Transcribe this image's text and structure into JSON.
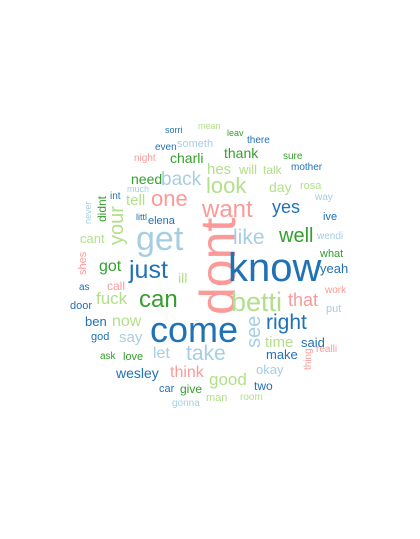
{
  "palette": {
    "dark_blue": "#2171b5",
    "light_blue": "#a6cee3",
    "dark_green": "#33a02c",
    "light_green": "#b2df8a",
    "pink": "#fb9a99"
  },
  "words": [
    {
      "text": "dont",
      "color": "pink",
      "rotated": true
    },
    {
      "text": "know",
      "color": "dark_blue",
      "rotated": false
    },
    {
      "text": "come",
      "color": "dark_blue",
      "rotated": false
    },
    {
      "text": "get",
      "color": "light_blue",
      "rotated": false
    },
    {
      "text": "betti",
      "color": "light_green",
      "rotated": false
    },
    {
      "text": "want",
      "color": "pink",
      "rotated": false
    },
    {
      "text": "just",
      "color": "dark_blue",
      "rotated": false
    },
    {
      "text": "can",
      "color": "dark_green",
      "rotated": false
    },
    {
      "text": "one",
      "color": "pink",
      "rotated": false
    },
    {
      "text": "look",
      "color": "light_green",
      "rotated": false
    },
    {
      "text": "see",
      "color": "light_blue",
      "rotated": true
    },
    {
      "text": "your",
      "color": "light_green",
      "rotated": true
    },
    {
      "text": "right",
      "color": "dark_blue",
      "rotated": false
    },
    {
      "text": "like",
      "color": "light_blue",
      "rotated": false
    },
    {
      "text": "take",
      "color": "light_blue",
      "rotated": false
    },
    {
      "text": "well",
      "color": "dark_green",
      "rotated": false
    },
    {
      "text": "yes",
      "color": "dark_blue",
      "rotated": false
    },
    {
      "text": "back",
      "color": "light_blue",
      "rotated": false
    },
    {
      "text": "that",
      "color": "pink",
      "rotated": false
    },
    {
      "text": "good",
      "color": "light_green",
      "rotated": false
    },
    {
      "text": "think",
      "color": "pink",
      "rotated": false
    },
    {
      "text": "got",
      "color": "dark_green",
      "rotated": false
    },
    {
      "text": "fuck",
      "color": "light_green",
      "rotated": false
    },
    {
      "text": "now",
      "color": "light_green",
      "rotated": false
    },
    {
      "text": "hes",
      "color": "light_green",
      "rotated": false
    },
    {
      "text": "let",
      "color": "light_blue",
      "rotated": false
    },
    {
      "text": "say",
      "color": "light_blue",
      "rotated": false
    },
    {
      "text": "tell",
      "color": "light_green",
      "rotated": false
    },
    {
      "text": "time",
      "color": "light_green",
      "rotated": false
    },
    {
      "text": "wesley",
      "color": "dark_blue",
      "rotated": false
    },
    {
      "text": "charli",
      "color": "dark_green",
      "rotated": false
    },
    {
      "text": "thank",
      "color": "dark_green",
      "rotated": false
    },
    {
      "text": "need",
      "color": "dark_green",
      "rotated": false
    },
    {
      "text": "day",
      "color": "light_green",
      "rotated": false
    },
    {
      "text": "will",
      "color": "light_green",
      "rotated": false
    },
    {
      "text": "ill",
      "color": "light_green",
      "rotated": false
    },
    {
      "text": "yeah",
      "color": "dark_blue",
      "rotated": false
    },
    {
      "text": "make",
      "color": "dark_blue",
      "rotated": false
    },
    {
      "text": "okay",
      "color": "light_blue",
      "rotated": false
    },
    {
      "text": "said",
      "color": "dark_blue",
      "rotated": false
    },
    {
      "text": "cant",
      "color": "light_green",
      "rotated": false
    },
    {
      "text": "ben",
      "color": "dark_blue",
      "rotated": false
    },
    {
      "text": "call",
      "color": "pink",
      "rotated": false
    },
    {
      "text": "give",
      "color": "dark_green",
      "rotated": false
    },
    {
      "text": "two",
      "color": "dark_blue",
      "rotated": false
    },
    {
      "text": "elena",
      "color": "dark_blue",
      "rotated": false
    },
    {
      "text": "talk",
      "color": "light_green",
      "rotated": false
    },
    {
      "text": "someth",
      "color": "light_blue",
      "rotated": false
    },
    {
      "text": "didnt",
      "color": "dark_green",
      "rotated": true
    },
    {
      "text": "shes",
      "color": "pink",
      "rotated": true
    },
    {
      "text": "thing",
      "color": "pink",
      "rotated": true
    },
    {
      "text": "realli",
      "color": "pink",
      "rotated": false
    },
    {
      "text": "rosa",
      "color": "light_green",
      "rotated": false
    },
    {
      "text": "work",
      "color": "pink",
      "rotated": false
    },
    {
      "text": "put",
      "color": "light_blue",
      "rotated": false
    },
    {
      "text": "what",
      "color": "dark_green",
      "rotated": false
    },
    {
      "text": "ive",
      "color": "dark_blue",
      "rotated": false
    },
    {
      "text": "wendi",
      "color": "light_blue",
      "rotated": false
    },
    {
      "text": "way",
      "color": "light_blue",
      "rotated": false
    },
    {
      "text": "mother",
      "color": "dark_blue",
      "rotated": false
    },
    {
      "text": "sure",
      "color": "dark_green",
      "rotated": false
    },
    {
      "text": "there",
      "color": "dark_blue",
      "rotated": false
    },
    {
      "text": "leav",
      "color": "dark_green",
      "rotated": false
    },
    {
      "text": "mean",
      "color": "light_green",
      "rotated": false
    },
    {
      "text": "sorri",
      "color": "dark_blue",
      "rotated": false
    },
    {
      "text": "even",
      "color": "dark_blue",
      "rotated": false
    },
    {
      "text": "night",
      "color": "pink",
      "rotated": false
    },
    {
      "text": "much",
      "color": "light_blue",
      "rotated": false
    },
    {
      "text": "int",
      "color": "dark_blue",
      "rotated": false
    },
    {
      "text": "littl",
      "color": "dark_blue",
      "rotated": false
    },
    {
      "text": "never",
      "color": "light_blue",
      "rotated": true
    },
    {
      "text": "as",
      "color": "dark_blue",
      "rotated": false
    },
    {
      "text": "door",
      "color": "dark_blue",
      "rotated": false
    },
    {
      "text": "god",
      "color": "dark_blue",
      "rotated": false
    },
    {
      "text": "ask",
      "color": "dark_green",
      "rotated": false
    },
    {
      "text": "love",
      "color": "dark_green",
      "rotated": false
    },
    {
      "text": "car",
      "color": "dark_blue",
      "rotated": false
    },
    {
      "text": "man",
      "color": "light_green",
      "rotated": false
    },
    {
      "text": "room",
      "color": "light_green",
      "rotated": false
    },
    {
      "text": "gonna",
      "color": "light_blue",
      "rotated": false
    }
  ]
}
